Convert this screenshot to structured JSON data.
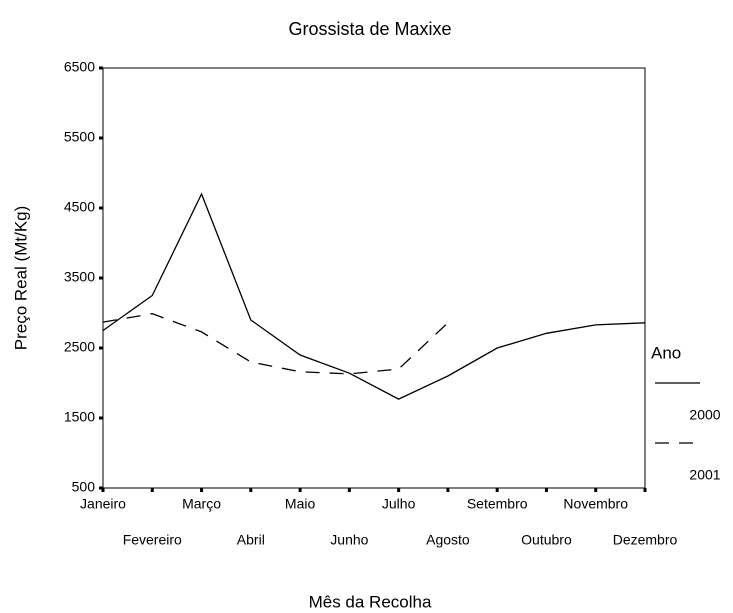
{
  "chart_data": {
    "type": "line",
    "title": "Grossista de Maxixe",
    "x_label": "Mês da Recolha",
    "y_label": "Preço Real (Mt/Kg)",
    "categories": [
      "Janeiro",
      "Fevereiro",
      "Março",
      "Abril",
      "Maio",
      "Junho",
      "Julho",
      "Agosto",
      "Setembro",
      "Outubro",
      "Novembro",
      "Dezembro"
    ],
    "series": [
      {
        "name": "2000",
        "color": "#000000",
        "line_style": "solid",
        "values": [
          2750,
          3250,
          4700,
          2900,
          2400,
          2140,
          1770,
          2100,
          2500,
          2710,
          2830,
          2860
        ]
      },
      {
        "name": "2001",
        "color": "#000000",
        "line_style": "dashed",
        "values": [
          2870,
          2990,
          2730,
          2300,
          2160,
          2130,
          2200,
          2860,
          null,
          null,
          null,
          null
        ]
      }
    ],
    "ylim": [
      500,
      6500
    ],
    "yticks": [
      500,
      1500,
      2500,
      3500,
      4500,
      5500,
      6500
    ],
    "legend_title": "Ano",
    "legend_position": "right",
    "grid": false
  }
}
